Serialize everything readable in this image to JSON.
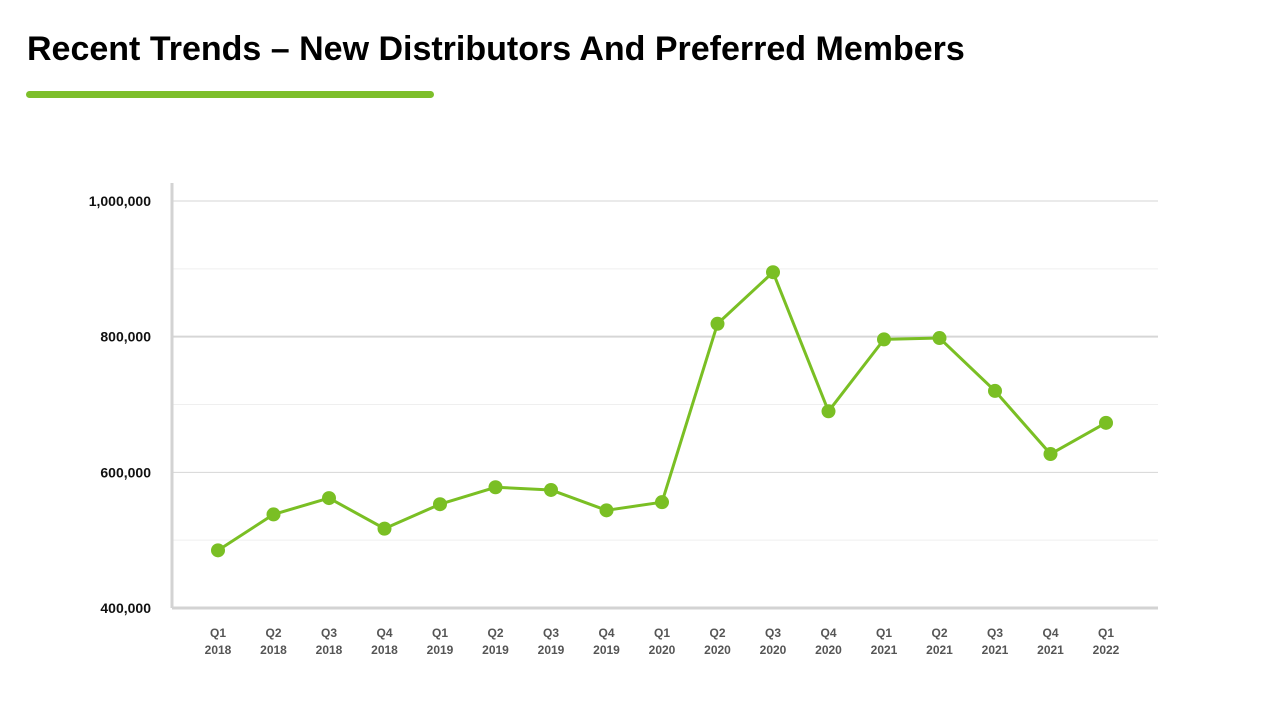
{
  "header": {
    "title": "Recent Trends – New Distributors And Preferred Members"
  },
  "colors": {
    "accent": "#7dbf2a",
    "series": "#7abf24",
    "gridline": "#e2e2e2",
    "major_gridline": "#d6d6d6",
    "axis": "#d3d3d3"
  },
  "chart_data": {
    "type": "line",
    "categories": [
      [
        "Q1",
        "2018"
      ],
      [
        "Q2",
        "2018"
      ],
      [
        "Q3",
        "2018"
      ],
      [
        "Q4",
        "2018"
      ],
      [
        "Q1",
        "2019"
      ],
      [
        "Q2",
        "2019"
      ],
      [
        "Q3",
        "2019"
      ],
      [
        "Q4",
        "2019"
      ],
      [
        "Q1",
        "2020"
      ],
      [
        "Q2",
        "2020"
      ],
      [
        "Q3",
        "2020"
      ],
      [
        "Q4",
        "2020"
      ],
      [
        "Q1",
        "2021"
      ],
      [
        "Q2",
        "2021"
      ],
      [
        "Q3",
        "2021"
      ],
      [
        "Q4",
        "2021"
      ],
      [
        "Q1",
        "2022"
      ]
    ],
    "values": [
      485000,
      538000,
      562000,
      517000,
      553000,
      578000,
      574000,
      544000,
      556000,
      819000,
      895000,
      690000,
      796000,
      798000,
      720000,
      627000,
      673000
    ],
    "ylim": [
      400000,
      1000000
    ],
    "yticks": [
      400000,
      600000,
      800000,
      1000000
    ],
    "ytick_labels": [
      "400,000",
      "600,000",
      "800,000",
      "1,000,000"
    ],
    "minor_gridlines": [
      500000,
      700000,
      900000
    ],
    "grid": true,
    "legend": "none",
    "title": "",
    "xlabel": "",
    "ylabel": ""
  }
}
